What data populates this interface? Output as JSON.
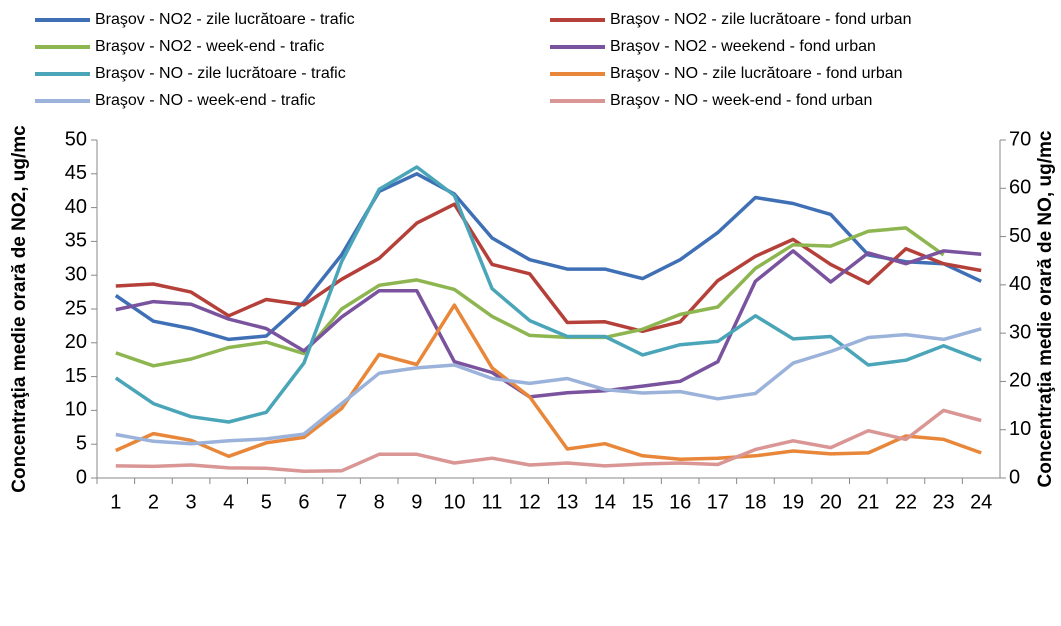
{
  "chart_data": {
    "type": "line",
    "ylabel": "Concentraţia medie orară de NO2, ug/mc",
    "y2label": "Concentraţia medie orară de NO, ug/mc",
    "categories": [
      1,
      2,
      3,
      4,
      5,
      6,
      7,
      8,
      9,
      10,
      11,
      12,
      13,
      14,
      15,
      16,
      17,
      18,
      19,
      20,
      21,
      22,
      23,
      24
    ],
    "ylim": [
      0,
      50
    ],
    "yticks": [
      0,
      5,
      10,
      15,
      20,
      25,
      30,
      35,
      40,
      45,
      50
    ],
    "y2lim": [
      0,
      70
    ],
    "y2ticks": [
      0,
      10,
      20,
      30,
      40,
      50,
      60,
      70
    ],
    "grid": false,
    "series": [
      {
        "name": "Braşov - NO2 - zile lucrătoare - trafic",
        "color": "#3f6fb5",
        "values": [
          27,
          23.2,
          22.1,
          20.5,
          21,
          26,
          33,
          42.4,
          45,
          42,
          35.5,
          32.3,
          30.9,
          30.9,
          29.5,
          32.3,
          36.3,
          41.5,
          40.6,
          39,
          33,
          32,
          31.7,
          29.1
        ]
      },
      {
        "name": "Braşov - NO2 - zile lucrătoare - fond urban",
        "color": "#b5403a",
        "values": [
          28.4,
          28.7,
          27.5,
          24,
          26.4,
          25.6,
          29.4,
          32.5,
          37.7,
          40.5,
          31.6,
          30.2,
          23,
          23.1,
          21.7,
          23.1,
          29.2,
          32.8,
          35.3,
          31.6,
          28.8,
          33.9,
          31.7,
          30.7
        ]
      },
      {
        "name": "Braşov - NO2 - week-end - trafic",
        "color": "#8db550",
        "values": [
          18.5,
          16.6,
          17.6,
          19.3,
          20.1,
          18.4,
          25,
          28.5,
          29.3,
          27.9,
          23.9,
          21.1,
          20.8,
          20.8,
          22,
          24.2,
          25.3,
          31,
          34.5,
          34.3,
          36.5,
          37,
          33,
          null
        ]
      },
      {
        "name": "Braşov - NO2 - weekend - fond urban",
        "color": "#7a539e",
        "values": [
          24.9,
          26.1,
          25.7,
          23.5,
          22.1,
          18.8,
          23.8,
          27.7,
          27.7,
          17.2,
          15.6,
          12,
          12.6,
          12.9,
          13.6,
          14.3,
          17.2,
          29.1,
          33.6,
          29,
          33.3,
          31.7,
          33.6,
          33.1
        ]
      },
      {
        "name": "Braşov - NO - zile lucrătoare - trafic",
        "color": "#4aa5b9",
        "axis": "y2",
        "values": [
          20.7,
          15.4,
          12.7,
          11.6,
          13.6,
          23.8,
          44.8,
          59.8,
          64.4,
          58.5,
          39.2,
          32.6,
          29.3,
          29.3,
          25.5,
          27.6,
          28.3,
          33.6,
          28.8,
          29.3,
          23.4,
          24.4,
          27.4,
          24.4
        ]
      },
      {
        "name": "Braşov - NO - zile lucrătoare - fond urban",
        "color": "#e8873a",
        "axis": "y2",
        "values": [
          5.7,
          9.2,
          7.8,
          4.5,
          7.3,
          8.4,
          14.4,
          25.6,
          23.5,
          35.8,
          22.8,
          16.8,
          6,
          7.1,
          4.6,
          3.9,
          4.1,
          4.6,
          5.6,
          5,
          5.2,
          8.7,
          8,
          5.2
        ]
      },
      {
        "name": "Braşov - NO - week-end - trafic",
        "color": "#9bb3db",
        "axis": "y2",
        "values": [
          9,
          7.6,
          7.1,
          7.7,
          8.1,
          9.1,
          15.4,
          21.7,
          22.8,
          23.4,
          20.6,
          19.6,
          20.6,
          18.3,
          17.6,
          17.9,
          16.4,
          17.5,
          23.8,
          26.2,
          29.1,
          29.7,
          28.7,
          30.9
        ]
      },
      {
        "name": "Braşov - NO - week-end - fond urban",
        "color": "#d99694",
        "axis": "y2",
        "values": [
          2.5,
          2.4,
          2.7,
          2.1,
          2,
          1.4,
          1.5,
          4.9,
          4.9,
          3.1,
          4.1,
          2.7,
          3.1,
          2.5,
          2.9,
          3.1,
          2.8,
          5.9,
          7.7,
          6.3,
          9.8,
          8,
          14,
          11.9
        ]
      }
    ]
  }
}
